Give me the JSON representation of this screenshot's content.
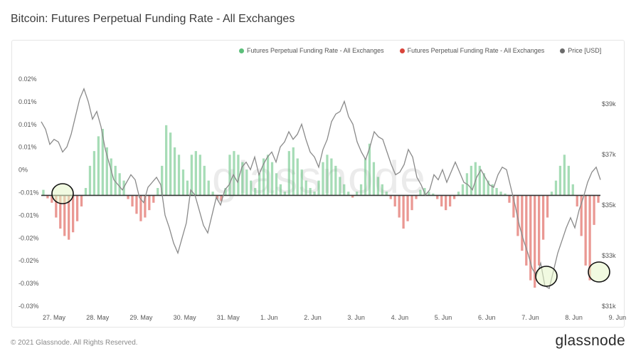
{
  "page": {
    "title": "Bitcoin: Futures Perpetual Funding Rate - All Exchanges",
    "footer": "© 2021 Glassnode. All Rights Reserved.",
    "brand": "glassnode",
    "watermark": "glassnode"
  },
  "legend": [
    {
      "label": "Futures Perpetual Funding Rate - All Exchanges",
      "color": "#5cbf7a"
    },
    {
      "label": "Futures Perpetual Funding Rate - All Exchanges",
      "color": "#d9443a"
    },
    {
      "label": "Price [USD]",
      "color": "#6b6b6b"
    }
  ],
  "chart_data": {
    "type": "bar",
    "x_tick_labels": [
      "27. May",
      "28. May",
      "29. May",
      "30. May",
      "31. May",
      "1. Jun",
      "2. Jun",
      "3. Jun",
      "4. Jun",
      "5. Jun",
      "6. Jun",
      "7. Jun",
      "8. Jun",
      "9. Jun"
    ],
    "y_left_ticks": [
      "0.02%",
      "0.01%",
      "0.01%",
      "0.01%",
      "0%",
      "-0.01%",
      "-0.01%",
      "-0.02%",
      "-0.02%",
      "-0.03%",
      "-0.03%"
    ],
    "y_left_range": [
      -0.03,
      0.0315
    ],
    "y_right_ticks": [
      "$39k",
      "$37k",
      "$35k",
      "$33k",
      "$31k"
    ],
    "y_right_range": [
      31000,
      39000
    ],
    "colors": {
      "positive": "#5cbf7a",
      "negative": "#d9443a",
      "price": "#8a8a8a"
    },
    "funding_rate": [
      0.0015,
      -0.0008,
      -0.002,
      -0.006,
      -0.009,
      -0.011,
      -0.012,
      -0.01,
      -0.007,
      -0.003,
      0.002,
      0.008,
      0.012,
      0.016,
      0.018,
      0.013,
      0.01,
      0.008,
      0.006,
      0.004,
      -0.001,
      -0.003,
      -0.005,
      -0.007,
      -0.006,
      -0.004,
      -0.002,
      0.002,
      0.008,
      0.019,
      0.017,
      0.013,
      0.011,
      0.007,
      0.004,
      0.011,
      0.012,
      0.011,
      0.008,
      0.004,
      0.001,
      -0.001,
      -0.0015,
      0.002,
      0.011,
      0.012,
      0.011,
      0.009,
      0.007,
      0.004,
      0.002,
      0.006,
      0.01,
      0.011,
      0.009,
      0.006,
      0.003,
      0.001,
      0.012,
      0.013,
      0.01,
      0.007,
      0.004,
      0.002,
      0.001,
      0.004,
      0.009,
      0.011,
      0.01,
      0.008,
      0.005,
      0.003,
      0.001,
      -0.0006,
      0.001,
      0.003,
      0.01,
      0.014,
      0.009,
      0.005,
      0.003,
      0.001,
      -0.001,
      -0.003,
      -0.006,
      -0.009,
      -0.007,
      -0.004,
      -0.001,
      0.0015,
      0.002,
      0.001,
      0.0005,
      -0.001,
      -0.003,
      -0.004,
      -0.003,
      -0.001,
      0.001,
      0.003,
      0.006,
      0.008,
      0.009,
      0.008,
      0.006,
      0.004,
      0.003,
      0.002,
      0.001,
      0.0005,
      -0.002,
      -0.006,
      -0.011,
      -0.015,
      -0.019,
      -0.023,
      -0.025,
      -0.019,
      -0.012,
      -0.006,
      0.001,
      0.004,
      0.008,
      0.011,
      0.008,
      0.003,
      -0.003,
      -0.011,
      -0.019,
      -0.023,
      -0.008,
      -0.002
    ],
    "price_usd": [
      38300,
      38000,
      37400,
      37600,
      37500,
      37100,
      37300,
      37800,
      38500,
      39200,
      39600,
      39100,
      38400,
      38700,
      38100,
      37200,
      36600,
      36000,
      35800,
      35600,
      35900,
      36200,
      36000,
      35300,
      35100,
      35700,
      35900,
      36100,
      35800,
      34600,
      34100,
      33500,
      33100,
      33700,
      34300,
      35600,
      35400,
      34800,
      34200,
      33900,
      34600,
      35300,
      35000,
      35600,
      35800,
      36200,
      35900,
      36500,
      36700,
      36400,
      36900,
      36200,
      36600,
      36900,
      37100,
      36700,
      37300,
      37500,
      37900,
      37600,
      37800,
      38200,
      37600,
      37100,
      36900,
      36500,
      37200,
      37600,
      38300,
      38600,
      38700,
      39100,
      38500,
      38200,
      37500,
      37100,
      36800,
      37300,
      37900,
      37700,
      37600,
      37100,
      36600,
      36200,
      36300,
      36600,
      37200,
      36900,
      36100,
      35800,
      35400,
      35600,
      36200,
      36000,
      36400,
      35900,
      36300,
      36700,
      36300,
      35900,
      35800,
      35600,
      36100,
      36400,
      36100,
      35800,
      35700,
      36200,
      36500,
      36400,
      35700,
      35000,
      34200,
      33600,
      33100,
      32500,
      32200,
      32700,
      31800,
      31700,
      32400,
      33100,
      33600,
      34100,
      34500,
      34100,
      34800,
      35300,
      35900,
      36300,
      36500,
      36000
    ]
  }
}
